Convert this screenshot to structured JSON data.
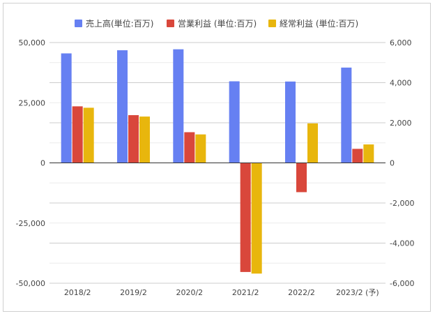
{
  "chart_data": {
    "type": "bar",
    "categories": [
      "2018/2",
      "2019/2",
      "2020/2",
      "2021/2",
      "2022/2",
      "2023/2 (予)"
    ],
    "series": [
      {
        "name": "売上高(単位:百万)",
        "axis": "left",
        "color": "#6680f2",
        "values": [
          45500,
          46800,
          47200,
          33900,
          33800,
          39600
        ]
      },
      {
        "name": "営業利益 (単位:百万)",
        "axis": "right",
        "color": "#d9473b",
        "values": [
          2820,
          2380,
          1530,
          -5440,
          -1460,
          700
        ]
      },
      {
        "name": "経常利益 (単位:百万)",
        "axis": "right",
        "color": "#e8b60d",
        "values": [
          2750,
          2310,
          1420,
          -5520,
          1970,
          920
        ]
      }
    ],
    "left_axis": {
      "min": -50000,
      "max": 50000,
      "ticks": [
        "50,000",
        "25,000",
        "0",
        "-25,000",
        "-50,000"
      ]
    },
    "right_axis": {
      "min": -6000,
      "max": 6000,
      "ticks": [
        "6,000",
        "4,000",
        "2,000",
        "0",
        "-2,000",
        "-4,000",
        "-6,000"
      ]
    },
    "legend_position": "top",
    "grid": true
  }
}
